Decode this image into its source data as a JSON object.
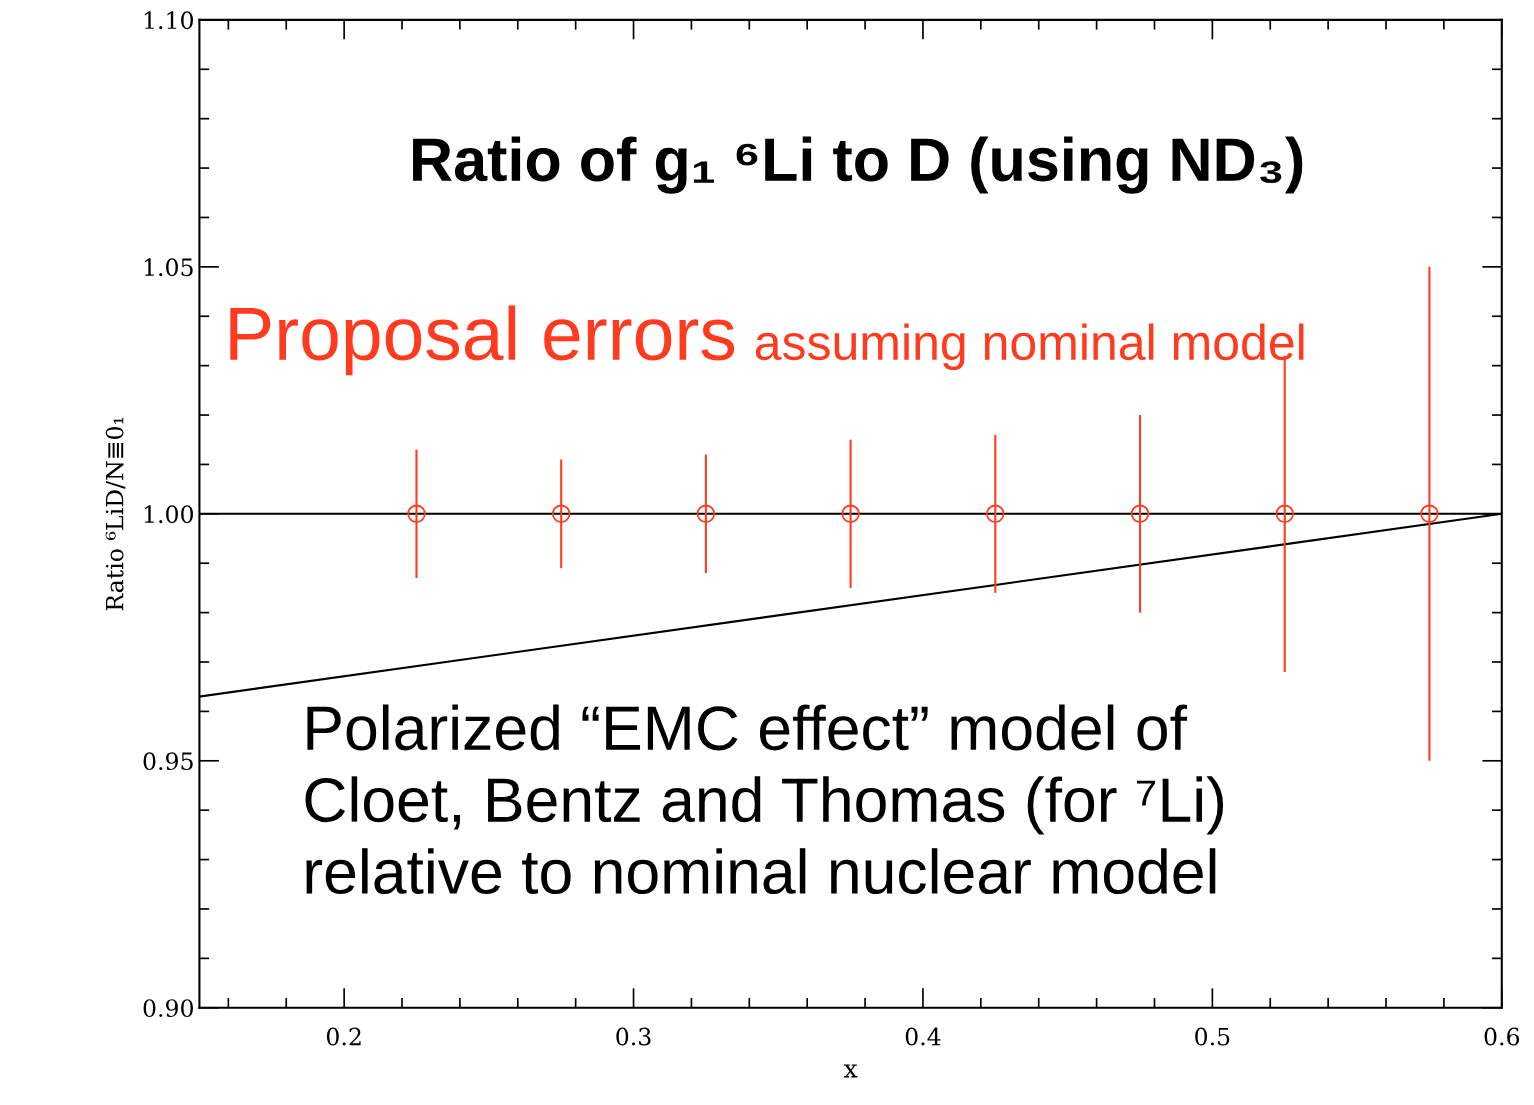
{
  "chart_data": {
    "type": "scatter",
    "title": "Ratio of g₁ ⁶Li to D (using ND₃)",
    "xlabel": "x",
    "ylabel": "Ratio ⁶LiD/N≣0₁",
    "xlim": [
      0.15,
      0.6
    ],
    "xticks": [
      0.2,
      0.3,
      0.4,
      0.5,
      0.6
    ],
    "ylim": [
      0.9,
      1.1
    ],
    "yticks": [
      {
        "value": 0.9,
        "label": "0.90"
      },
      0.95,
      {
        "value": 1.0,
        "label": "1.00"
      },
      1.05,
      {
        "value": 1.1,
        "label": "1.10"
      }
    ],
    "series": [
      {
        "marker": "circle",
        "color": "#ff3b1f",
        "x": [
          0.225,
          0.275,
          0.325,
          0.375,
          0.425,
          0.475,
          0.525,
          0.575
        ],
        "values": [
          1.0,
          1.0,
          1.0,
          1.0,
          1.0,
          1.0,
          1.0,
          1.0
        ],
        "errors": [
          0.013,
          0.011,
          0.012,
          0.015,
          0.016,
          0.02,
          0.032,
          0.05
        ]
      },
      {
        "type": "line",
        "marker": "none",
        "color": "#000000",
        "x": [
          0.15,
          0.425,
          0.6
        ],
        "values": [
          0.963,
          0.9856,
          1.0
        ]
      }
    ],
    "ref_lines": [
      {
        "axis": "y",
        "value": 1.0,
        "color": "#000000"
      }
    ],
    "annotations": [
      "Proposal errors",
      "assuming nominal model",
      "Polarized “EMC effect” model of\nCloet, Bentz and Thomas (for ⁷Li)\nrelative to nominal nuclear model"
    ]
  }
}
